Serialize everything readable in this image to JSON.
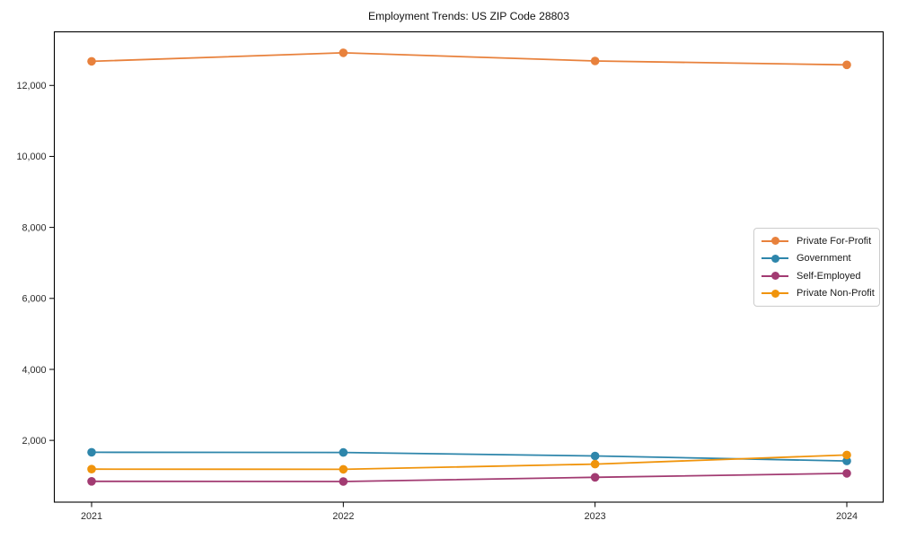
{
  "chart_data": {
    "type": "line",
    "title": "Employment Trends: US ZIP Code 28803",
    "x_categories": [
      "2021",
      "2022",
      "2023",
      "2024"
    ],
    "series": [
      {
        "name": "Private For-Profit",
        "color": "#E8813C",
        "values": [
          12680,
          12920,
          12690,
          12580
        ]
      },
      {
        "name": "Government",
        "color": "#2E86AB",
        "values": [
          1665,
          1660,
          1560,
          1420
        ]
      },
      {
        "name": "Self-Employed",
        "color": "#A23B72",
        "values": [
          845,
          840,
          960,
          1070
        ]
      },
      {
        "name": "Private Non-Profit",
        "color": "#F0940C",
        "values": [
          1190,
          1185,
          1330,
          1590
        ]
      }
    ],
    "yticks": [
      2000,
      4000,
      6000,
      8000,
      10000,
      12000
    ],
    "ytick_labels": [
      "2,000",
      "4,000",
      "6,000",
      "8,000",
      "10,000",
      "12,000"
    ],
    "ylim": [
      260,
      13510
    ],
    "xlabel": "",
    "ylabel": "",
    "grid": false,
    "legend_position": "center-right",
    "marker": "circle",
    "frame_color": "#000000",
    "background_color": "#ffffff"
  }
}
